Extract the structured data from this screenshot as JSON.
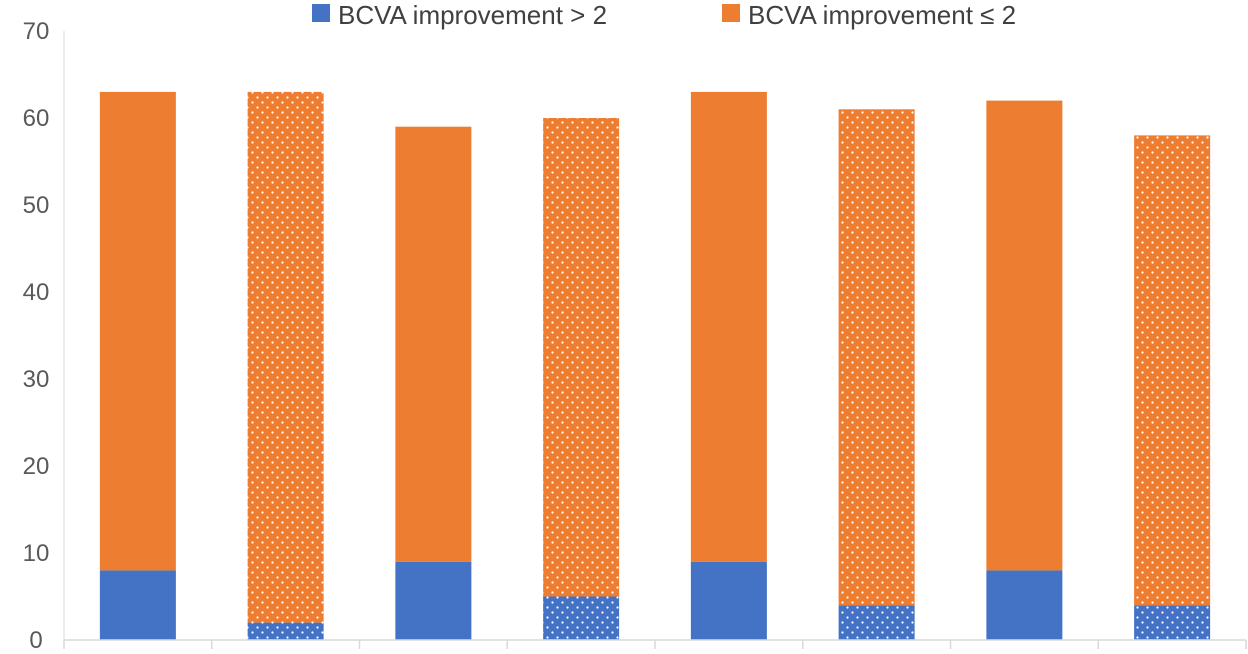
{
  "chart_data": {
    "type": "bar",
    "stacked": true,
    "title": "",
    "xlabel": "",
    "ylabel": "",
    "ylim": [
      0,
      70
    ],
    "yticks": [
      0,
      10,
      20,
      30,
      40,
      50,
      60,
      70
    ],
    "grid": false,
    "legend_position": "top",
    "categories": [
      "",
      "",
      "",
      "",
      "",
      "",
      "",
      ""
    ],
    "bar_patterns": [
      "solid",
      "dotted",
      "solid",
      "dotted",
      "solid",
      "dotted",
      "solid",
      "dotted"
    ],
    "series": [
      {
        "name": "BCVA improvement > 2",
        "color": "#4472C4",
        "values": [
          8,
          2,
          9,
          5,
          9,
          4,
          8,
          4
        ]
      },
      {
        "name": "BCVA improvement ≤ 2",
        "color": "#ED7D31",
        "values": [
          55,
          61,
          50,
          55,
          54,
          57,
          54,
          54
        ]
      }
    ]
  }
}
